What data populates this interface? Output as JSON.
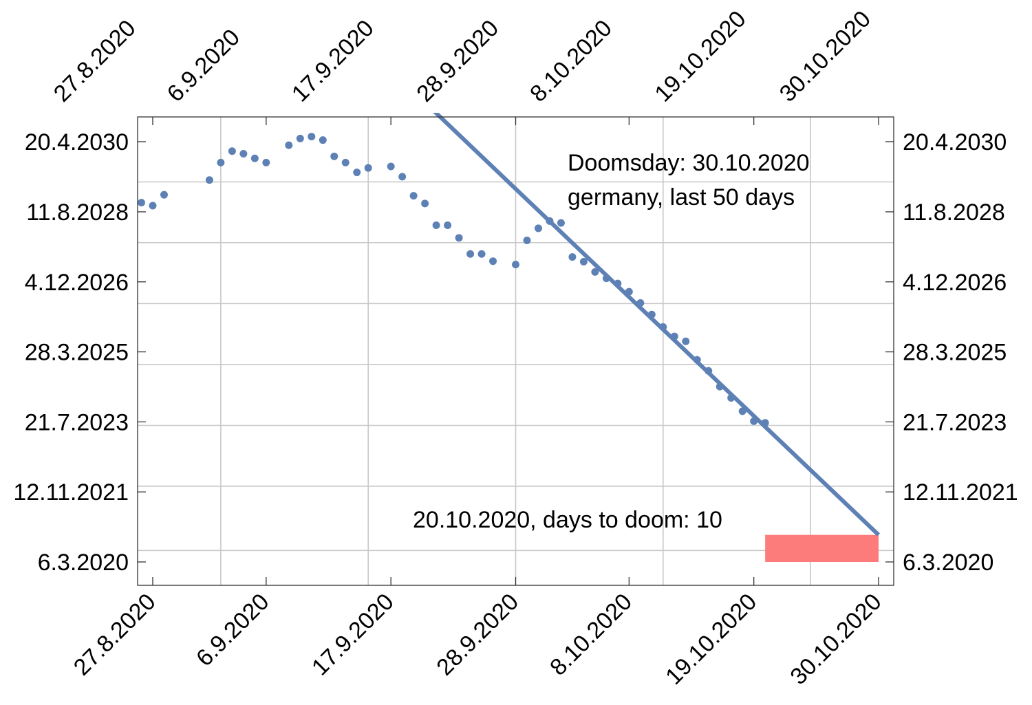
{
  "chart_data": {
    "type": "scatter",
    "x_unit": "date",
    "y_unit": "date",
    "xlim": [
      "2020-08-26",
      "2020-11-01"
    ],
    "ylim": [
      "2019-10-06",
      "2030-12-01"
    ],
    "grid": true,
    "x_ticks": [
      {
        "date": "2020-08-27",
        "label": "27.8.2020"
      },
      {
        "date": "2020-09-06",
        "label": "6.9.2020"
      },
      {
        "date": "2020-09-17",
        "label": "17.9.2020"
      },
      {
        "date": "2020-09-28",
        "label": "28.9.2020"
      },
      {
        "date": "2020-10-08",
        "label": "8.10.2020"
      },
      {
        "date": "2020-10-19",
        "label": "19.10.2020"
      },
      {
        "date": "2020-10-30",
        "label": "30.10.2020"
      }
    ],
    "x_grid": [
      "2020-09-02",
      "2020-09-15",
      "2020-09-28",
      "2020-10-11",
      "2020-10-24"
    ],
    "y_ticks": [
      {
        "date": "2020-03-06",
        "label": "6.3.2020"
      },
      {
        "date": "2021-11-12",
        "label": "12.11.2021"
      },
      {
        "date": "2023-07-21",
        "label": "21.7.2023"
      },
      {
        "date": "2025-03-28",
        "label": "28.3.2025"
      },
      {
        "date": "2026-12-04",
        "label": "4.12.2026"
      },
      {
        "date": "2028-08-11",
        "label": "11.8.2028"
      },
      {
        "date": "2030-04-20",
        "label": "20.4.2030"
      }
    ],
    "y_grid": [
      "2020-06-15",
      "2022-01-01",
      "2023-06-20",
      "2024-12-07",
      "2026-05-27",
      "2027-11-14",
      "2029-05-01"
    ],
    "series": [
      {
        "kind": "scatter",
        "color": "#5e81b5",
        "points": [
          {
            "x": "2020-08-26",
            "y": "2028-10-31"
          },
          {
            "x": "2020-08-27",
            "y": "2028-10-04"
          },
          {
            "x": "2020-08-28",
            "y": "2029-01-08"
          },
          {
            "x": "2020-09-01",
            "y": "2029-05-18"
          },
          {
            "x": "2020-09-02",
            "y": "2029-10-18"
          },
          {
            "x": "2020-09-03",
            "y": "2030-01-27"
          },
          {
            "x": "2020-09-04",
            "y": "2030-01-04"
          },
          {
            "x": "2020-09-05",
            "y": "2029-11-24"
          },
          {
            "x": "2020-09-06",
            "y": "2029-10-18"
          },
          {
            "x": "2020-09-08",
            "y": "2030-03-20"
          },
          {
            "x": "2020-09-09",
            "y": "2030-05-18"
          },
          {
            "x": "2020-09-10",
            "y": "2030-06-04"
          },
          {
            "x": "2020-09-11",
            "y": "2030-05-04"
          },
          {
            "x": "2020-09-12",
            "y": "2029-12-12"
          },
          {
            "x": "2020-09-13",
            "y": "2029-10-18"
          },
          {
            "x": "2020-09-14",
            "y": "2029-07-24"
          },
          {
            "x": "2020-09-15",
            "y": "2029-09-01"
          },
          {
            "x": "2020-09-17",
            "y": "2029-09-14"
          },
          {
            "x": "2020-09-18",
            "y": "2029-06-16"
          },
          {
            "x": "2020-09-19",
            "y": "2028-12-30"
          },
          {
            "x": "2020-09-20",
            "y": "2028-10-23"
          },
          {
            "x": "2020-09-21",
            "y": "2028-04-15"
          },
          {
            "x": "2020-09-22",
            "y": "2028-04-15"
          },
          {
            "x": "2020-09-23",
            "y": "2027-12-26"
          },
          {
            "x": "2020-09-24",
            "y": "2027-08-06"
          },
          {
            "x": "2020-09-25",
            "y": "2027-08-06"
          },
          {
            "x": "2020-09-26",
            "y": "2027-06-04"
          },
          {
            "x": "2020-09-28",
            "y": "2027-05-05"
          },
          {
            "x": "2020-09-29",
            "y": "2027-12-04"
          },
          {
            "x": "2020-09-30",
            "y": "2028-03-19"
          },
          {
            "x": "2020-10-01",
            "y": "2028-05-22"
          },
          {
            "x": "2020-10-02",
            "y": "2028-05-05"
          },
          {
            "x": "2020-10-03",
            "y": "2027-07-11"
          },
          {
            "x": "2020-10-04",
            "y": "2027-05-30"
          },
          {
            "x": "2020-10-05",
            "y": "2027-03-01"
          },
          {
            "x": "2020-10-06",
            "y": "2027-01-04"
          },
          {
            "x": "2020-10-07",
            "y": "2026-11-20"
          },
          {
            "x": "2020-10-08",
            "y": "2026-09-08"
          },
          {
            "x": "2020-10-09",
            "y": "2026-06-01"
          },
          {
            "x": "2020-10-10",
            "y": "2026-02-20"
          },
          {
            "x": "2020-10-11",
            "y": "2025-11-02"
          },
          {
            "x": "2020-10-12",
            "y": "2025-08-11"
          },
          {
            "x": "2020-10-13",
            "y": "2025-06-29"
          },
          {
            "x": "2020-10-14",
            "y": "2025-01-17"
          },
          {
            "x": "2020-10-15",
            "y": "2024-10-12"
          },
          {
            "x": "2020-10-16",
            "y": "2024-05-26"
          },
          {
            "x": "2020-10-17",
            "y": "2024-02-17"
          },
          {
            "x": "2020-10-18",
            "y": "2023-10-23"
          },
          {
            "x": "2020-10-19",
            "y": "2023-07-27"
          },
          {
            "x": "2020-10-20",
            "y": "2023-07-13"
          }
        ]
      },
      {
        "kind": "line",
        "color": "#5e81b5",
        "points": [
          {
            "x": "2020-09-20",
            "y": "2031-04-01"
          },
          {
            "x": "2020-10-30",
            "y": "2020-10-30"
          }
        ]
      }
    ],
    "highlight_band": {
      "color": "#fc7c7c",
      "x": [
        "2020-10-20",
        "2020-10-30"
      ],
      "y": [
        "2020-03-06",
        "2020-10-30"
      ]
    },
    "annotations": [
      {
        "text": "Doomsday: 30.10.2020",
        "anchor": "top-right"
      },
      {
        "text": "germany, last 50 days",
        "anchor": "top-right"
      },
      {
        "text": "20.10.2020, days to doom: 10",
        "anchor": "bottom-right"
      }
    ]
  }
}
